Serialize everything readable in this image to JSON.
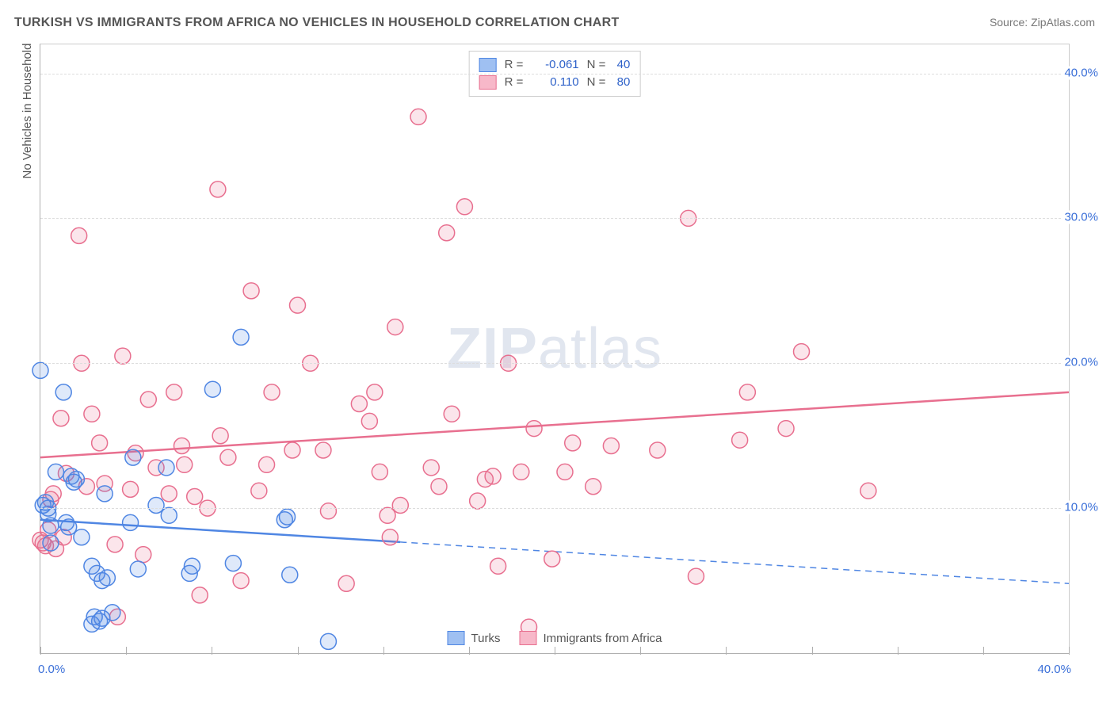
{
  "title": "TURKISH VS IMMIGRANTS FROM AFRICA NO VEHICLES IN HOUSEHOLD CORRELATION CHART",
  "source": "Source: ZipAtlas.com",
  "watermark_big": "ZIP",
  "watermark_small": "atlas",
  "y_axis_title": "No Vehicles in Household",
  "x_min_label": "0.0%",
  "x_max_label": "40.0%",
  "y_labels": [
    "10.0%",
    "20.0%",
    "30.0%",
    "40.0%"
  ],
  "chart": {
    "type": "scatter",
    "xlim": [
      0,
      40
    ],
    "ylim": [
      0,
      42
    ],
    "ytick_positions": [
      10,
      20,
      30,
      40
    ],
    "xtick_positions": [
      0,
      3.33,
      6.67,
      10,
      13.33,
      16.67,
      20,
      23.33,
      26.67,
      30,
      33.33,
      36.67,
      40
    ],
    "background_color": "#ffffff",
    "grid_color": "#dddddd",
    "axis_color": "#b0b0b0",
    "marker_radius": 10,
    "marker_fill_opacity": 0.18,
    "marker_stroke_width": 1.5
  },
  "series": {
    "turks": {
      "label": "Turks",
      "R_label": "R =",
      "R_value": "-0.061",
      "N_label": "N =",
      "N_value": "40",
      "color": "#4f86e3",
      "fill": "#9fc0f2",
      "value_color": "#2f62c9",
      "reg_solid_x_end": 14,
      "reg_line": {
        "x1": 0,
        "y1": 9.2,
        "x2": 40,
        "y2": 4.8
      },
      "points": [
        {
          "x": 0.0,
          "y": 19.5
        },
        {
          "x": 0.1,
          "y": 10.2
        },
        {
          "x": 0.2,
          "y": 10.4
        },
        {
          "x": 0.3,
          "y": 10.0
        },
        {
          "x": 0.3,
          "y": 9.6
        },
        {
          "x": 0.4,
          "y": 8.8
        },
        {
          "x": 0.4,
          "y": 7.6
        },
        {
          "x": 0.6,
          "y": 12.5
        },
        {
          "x": 0.9,
          "y": 18.0
        },
        {
          "x": 1.3,
          "y": 11.8
        },
        {
          "x": 1.4,
          "y": 12.0
        },
        {
          "x": 1.6,
          "y": 8.0
        },
        {
          "x": 1.2,
          "y": 12.2
        },
        {
          "x": 2.0,
          "y": 6.0
        },
        {
          "x": 2.2,
          "y": 5.5
        },
        {
          "x": 2.4,
          "y": 5.0
        },
        {
          "x": 2.6,
          "y": 5.2
        },
        {
          "x": 2.5,
          "y": 11.0
        },
        {
          "x": 2.1,
          "y": 2.5
        },
        {
          "x": 2.3,
          "y": 2.2
        },
        {
          "x": 2.4,
          "y": 2.4
        },
        {
          "x": 3.5,
          "y": 9.0
        },
        {
          "x": 3.8,
          "y": 5.8
        },
        {
          "x": 3.6,
          "y": 13.5
        },
        {
          "x": 4.5,
          "y": 10.2
        },
        {
          "x": 4.9,
          "y": 12.8
        },
        {
          "x": 5.0,
          "y": 9.5
        },
        {
          "x": 5.8,
          "y": 5.5
        },
        {
          "x": 5.9,
          "y": 6.0
        },
        {
          "x": 6.7,
          "y": 18.2
        },
        {
          "x": 7.5,
          "y": 6.2
        },
        {
          "x": 7.8,
          "y": 21.8
        },
        {
          "x": 9.5,
          "y": 9.2
        },
        {
          "x": 9.6,
          "y": 9.4
        },
        {
          "x": 9.7,
          "y": 5.4
        },
        {
          "x": 11.2,
          "y": 0.8
        },
        {
          "x": 2.8,
          "y": 2.8
        },
        {
          "x": 2.0,
          "y": 2.0
        },
        {
          "x": 1.0,
          "y": 9.0
        },
        {
          "x": 1.1,
          "y": 8.7
        }
      ]
    },
    "africa": {
      "label": "Immigrants from Africa",
      "R_label": "R =",
      "R_value": "0.110",
      "N_label": "N =",
      "N_value": "80",
      "color": "#e86f8f",
      "fill": "#f7b8c9",
      "value_color": "#2f62c9",
      "reg_solid_x_end": 40,
      "reg_line": {
        "x1": 0,
        "y1": 13.5,
        "x2": 40,
        "y2": 18.0
      },
      "points": [
        {
          "x": 0.0,
          "y": 7.8
        },
        {
          "x": 0.1,
          "y": 7.6
        },
        {
          "x": 0.2,
          "y": 7.4
        },
        {
          "x": 0.3,
          "y": 8.5
        },
        {
          "x": 0.4,
          "y": 10.6
        },
        {
          "x": 0.5,
          "y": 11.0
        },
        {
          "x": 0.8,
          "y": 16.2
        },
        {
          "x": 1.0,
          "y": 12.4
        },
        {
          "x": 1.5,
          "y": 28.8
        },
        {
          "x": 1.6,
          "y": 20.0
        },
        {
          "x": 2.0,
          "y": 16.5
        },
        {
          "x": 2.3,
          "y": 14.5
        },
        {
          "x": 2.5,
          "y": 11.7
        },
        {
          "x": 3.2,
          "y": 20.5
        },
        {
          "x": 3.5,
          "y": 11.3
        },
        {
          "x": 3.7,
          "y": 13.8
        },
        {
          "x": 4.2,
          "y": 17.5
        },
        {
          "x": 4.5,
          "y": 12.8
        },
        {
          "x": 5.0,
          "y": 11.0
        },
        {
          "x": 5.2,
          "y": 18.0
        },
        {
          "x": 5.5,
          "y": 14.3
        },
        {
          "x": 5.6,
          "y": 13.0
        },
        {
          "x": 6.0,
          "y": 10.8
        },
        {
          "x": 6.5,
          "y": 10.0
        },
        {
          "x": 6.9,
          "y": 32.0
        },
        {
          "x": 7.0,
          "y": 15.0
        },
        {
          "x": 7.3,
          "y": 13.5
        },
        {
          "x": 7.8,
          "y": 5.0
        },
        {
          "x": 8.2,
          "y": 25.0
        },
        {
          "x": 8.5,
          "y": 11.2
        },
        {
          "x": 9.0,
          "y": 18.0
        },
        {
          "x": 9.8,
          "y": 14.0
        },
        {
          "x": 10.0,
          "y": 24.0
        },
        {
          "x": 10.5,
          "y": 20.0
        },
        {
          "x": 11.0,
          "y": 14.0
        },
        {
          "x": 11.2,
          "y": 9.8
        },
        {
          "x": 11.9,
          "y": 4.8
        },
        {
          "x": 12.4,
          "y": 17.2
        },
        {
          "x": 12.8,
          "y": 16.0
        },
        {
          "x": 13.0,
          "y": 18.0
        },
        {
          "x": 13.2,
          "y": 12.5
        },
        {
          "x": 13.5,
          "y": 9.5
        },
        {
          "x": 13.6,
          "y": 8.0
        },
        {
          "x": 13.8,
          "y": 22.5
        },
        {
          "x": 14.0,
          "y": 10.2
        },
        {
          "x": 14.7,
          "y": 37.0
        },
        {
          "x": 15.2,
          "y": 12.8
        },
        {
          "x": 15.5,
          "y": 11.5
        },
        {
          "x": 15.8,
          "y": 29.0
        },
        {
          "x": 16.0,
          "y": 16.5
        },
        {
          "x": 16.5,
          "y": 30.8
        },
        {
          "x": 17.0,
          "y": 10.5
        },
        {
          "x": 17.3,
          "y": 12.0
        },
        {
          "x": 17.6,
          "y": 12.2
        },
        {
          "x": 17.8,
          "y": 6.0
        },
        {
          "x": 18.2,
          "y": 20.0
        },
        {
          "x": 18.7,
          "y": 12.5
        },
        {
          "x": 19.0,
          "y": 1.8
        },
        {
          "x": 19.2,
          "y": 15.5
        },
        {
          "x": 19.9,
          "y": 6.5
        },
        {
          "x": 20.4,
          "y": 12.5
        },
        {
          "x": 20.7,
          "y": 14.5
        },
        {
          "x": 21.5,
          "y": 11.5
        },
        {
          "x": 22.2,
          "y": 14.3
        },
        {
          "x": 24.0,
          "y": 14.0
        },
        {
          "x": 25.2,
          "y": 30.0
        },
        {
          "x": 25.5,
          "y": 5.3
        },
        {
          "x": 27.2,
          "y": 14.7
        },
        {
          "x": 27.5,
          "y": 18.0
        },
        {
          "x": 29.0,
          "y": 15.5
        },
        {
          "x": 29.6,
          "y": 20.8
        },
        {
          "x": 32.2,
          "y": 11.2
        },
        {
          "x": 2.9,
          "y": 7.5
        },
        {
          "x": 3.0,
          "y": 2.5
        },
        {
          "x": 4.0,
          "y": 6.8
        },
        {
          "x": 6.2,
          "y": 4.0
        },
        {
          "x": 8.8,
          "y": 13.0
        },
        {
          "x": 1.8,
          "y": 11.5
        },
        {
          "x": 0.6,
          "y": 7.2
        },
        {
          "x": 0.9,
          "y": 8.0
        }
      ]
    }
  },
  "bottom_legend": {
    "turks": "Turks",
    "africa": "Immigrants from Africa"
  }
}
